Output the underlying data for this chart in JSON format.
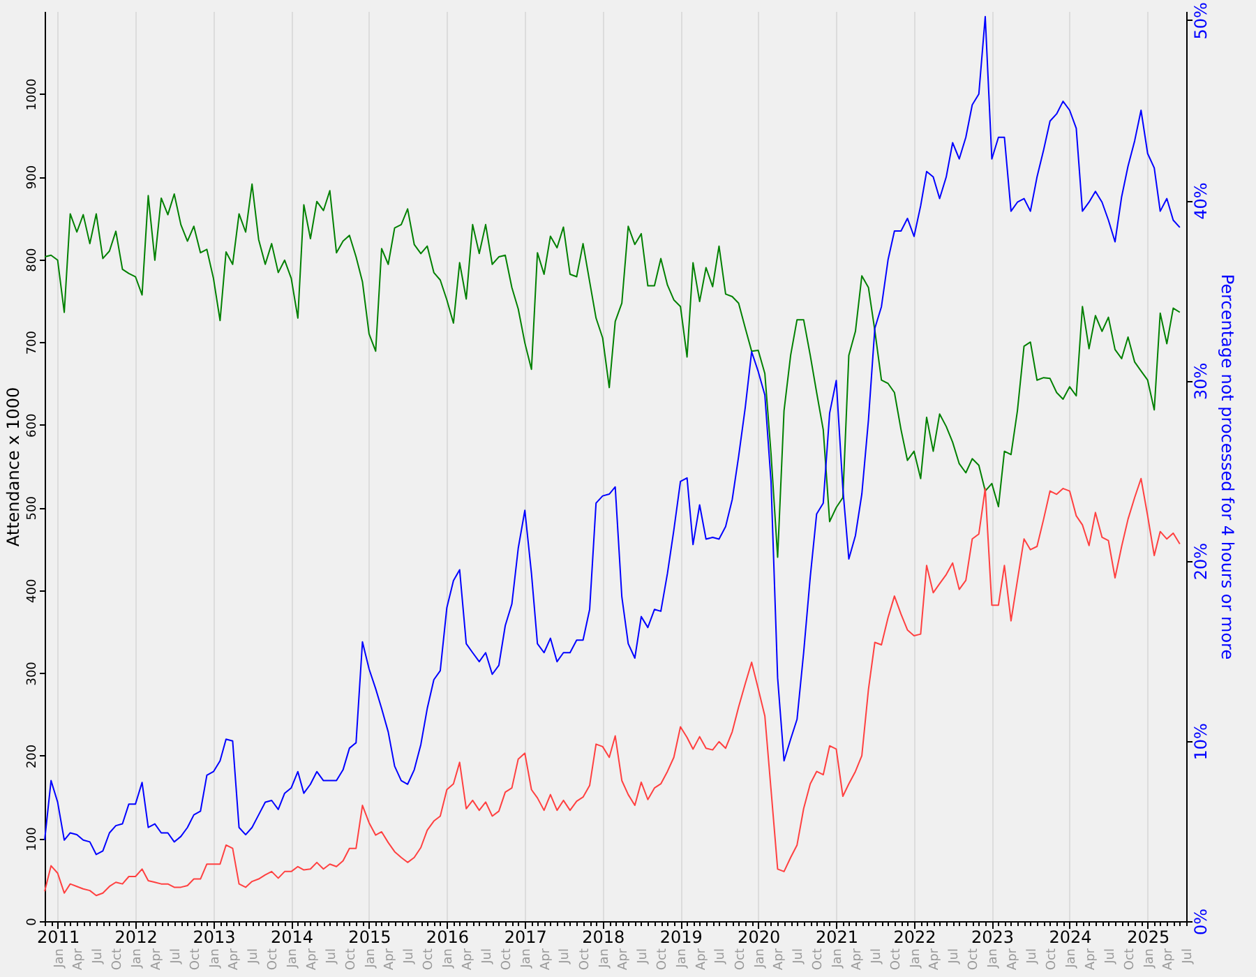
{
  "chart_data": {
    "type": "line",
    "xlabel": null,
    "ylabel": "Attendance x 1000",
    "y2label": "Percentage not processed for 4 hours or more",
    "grid": "x",
    "xlim": [
      "2010-11",
      "2025-07"
    ],
    "ylim": [
      0,
      1100
    ],
    "yticks": [
      0,
      100,
      200,
      300,
      400,
      500,
      600,
      700,
      800,
      900,
      1000
    ],
    "y2lim": [
      0,
      50.5
    ],
    "y2ticks": [
      {
        "value": 0,
        "label": "0%"
      },
      {
        "value": 10,
        "label": "10%"
      },
      {
        "value": 20,
        "label": "20%"
      },
      {
        "value": 30,
        "label": "30%"
      },
      {
        "value": 40,
        "label": "40%"
      },
      {
        "value": 50,
        "label": "50%"
      }
    ],
    "xticks": [
      {
        "value": "2011",
        "label": "2011"
      },
      {
        "value": "2012",
        "label": "2012"
      },
      {
        "value": "2013",
        "label": "2013"
      },
      {
        "value": "2014",
        "label": "2014"
      },
      {
        "value": "2015",
        "label": "2015"
      },
      {
        "value": "2016",
        "label": "2016"
      },
      {
        "value": "2017",
        "label": "2017"
      },
      {
        "value": "2018",
        "label": "2018"
      },
      {
        "value": "2019",
        "label": "2019"
      },
      {
        "value": "2020",
        "label": "2020"
      },
      {
        "value": "2021",
        "label": "2021"
      },
      {
        "value": "2022",
        "label": "2022"
      },
      {
        "value": "2023",
        "label": "2023"
      },
      {
        "value": "2024",
        "label": "2024"
      },
      {
        "value": "2025",
        "label": "2025"
      }
    ],
    "x2lim": [
      "2010-11",
      "2025-07"
    ],
    "x2ticks": [
      {
        "value": "2010-11",
        "label": null
      },
      {
        "value": "2010-12",
        "label": null
      },
      {
        "value": "2011-01",
        "label": "Jan"
      },
      {
        "value": "2011-02",
        "label": null
      },
      {
        "value": "2011-03",
        "label": null
      },
      {
        "value": "2011-04",
        "label": "Apr"
      },
      {
        "value": "2011-05",
        "label": null
      },
      {
        "value": "2011-06",
        "label": null
      },
      {
        "value": "2011-07",
        "label": "Jul"
      },
      {
        "value": "2011-08",
        "label": null
      },
      {
        "value": "2011-09",
        "label": null
      },
      {
        "value": "2011-10",
        "label": "Oct"
      },
      {
        "value": "2011-11",
        "label": null
      },
      {
        "value": "2011-12",
        "label": null
      },
      {
        "value": "2012-01",
        "label": "Jan"
      },
      {
        "value": "2012-02",
        "label": null
      },
      {
        "value": "2012-03",
        "label": null
      },
      {
        "value": "2012-04",
        "label": "Apr"
      },
      {
        "value": "2012-05",
        "label": null
      },
      {
        "value": "2012-06",
        "label": null
      },
      {
        "value": "2012-07",
        "label": "Jul"
      },
      {
        "value": "2012-08",
        "label": null
      },
      {
        "value": "2012-09",
        "label": null
      },
      {
        "value": "2012-10",
        "label": "Oct"
      },
      {
        "value": "2012-11",
        "label": null
      },
      {
        "value": "2012-12",
        "label": null
      },
      {
        "value": "2013-01",
        "label": "Jan"
      },
      {
        "value": "2013-02",
        "label": null
      },
      {
        "value": "2013-03",
        "label": null
      },
      {
        "value": "2013-04",
        "label": "Apr"
      },
      {
        "value": "2013-05",
        "label": null
      },
      {
        "value": "2013-06",
        "label": null
      },
      {
        "value": "2013-07",
        "label": "Jul"
      },
      {
        "value": "2013-08",
        "label": null
      },
      {
        "value": "2013-09",
        "label": null
      },
      {
        "value": "2013-10",
        "label": "Oct"
      },
      {
        "value": "2013-11",
        "label": null
      },
      {
        "value": "2013-12",
        "label": null
      },
      {
        "value": "2014-01",
        "label": "Jan"
      },
      {
        "value": "2014-02",
        "label": null
      },
      {
        "value": "2014-03",
        "label": null
      },
      {
        "value": "2014-04",
        "label": "Apr"
      },
      {
        "value": "2014-05",
        "label": null
      },
      {
        "value": "2014-06",
        "label": null
      },
      {
        "value": "2014-07",
        "label": "Jul"
      },
      {
        "value": "2014-08",
        "label": null
      },
      {
        "value": "2014-09",
        "label": null
      },
      {
        "value": "2014-10",
        "label": "Oct"
      },
      {
        "value": "2014-11",
        "label": null
      },
      {
        "value": "2014-12",
        "label": null
      },
      {
        "value": "2015-01",
        "label": "Jan"
      },
      {
        "value": "2015-02",
        "label": null
      },
      {
        "value": "2015-03",
        "label": null
      },
      {
        "value": "2015-04",
        "label": "Apr"
      },
      {
        "value": "2015-05",
        "label": null
      },
      {
        "value": "2015-06",
        "label": null
      },
      {
        "value": "2015-07",
        "label": "Jul"
      },
      {
        "value": "2015-08",
        "label": null
      },
      {
        "value": "2015-09",
        "label": null
      },
      {
        "value": "2015-10",
        "label": "Oct"
      },
      {
        "value": "2015-11",
        "label": null
      },
      {
        "value": "2015-12",
        "label": null
      },
      {
        "value": "2016-01",
        "label": "Jan"
      },
      {
        "value": "2016-02",
        "label": null
      },
      {
        "value": "2016-03",
        "label": null
      },
      {
        "value": "2016-04",
        "label": "Apr"
      },
      {
        "value": "2016-05",
        "label": null
      },
      {
        "value": "2016-06",
        "label": null
      },
      {
        "value": "2016-07",
        "label": "Jul"
      },
      {
        "value": "2016-08",
        "label": null
      },
      {
        "value": "2016-09",
        "label": null
      },
      {
        "value": "2016-10",
        "label": "Oct"
      },
      {
        "value": "2016-11",
        "label": null
      },
      {
        "value": "2016-12",
        "label": null
      },
      {
        "value": "2017-01",
        "label": "Jan"
      },
      {
        "value": "2017-02",
        "label": null
      },
      {
        "value": "2017-03",
        "label": null
      },
      {
        "value": "2017-04",
        "label": "Apr"
      },
      {
        "value": "2017-05",
        "label": null
      },
      {
        "value": "2017-06",
        "label": null
      },
      {
        "value": "2017-07",
        "label": "Jul"
      },
      {
        "value": "2017-08",
        "label": null
      },
      {
        "value": "2017-09",
        "label": null
      },
      {
        "value": "2017-10",
        "label": "Oct"
      },
      {
        "value": "2017-11",
        "label": null
      },
      {
        "value": "2017-12",
        "label": null
      },
      {
        "value": "2018-01",
        "label": "Jan"
      },
      {
        "value": "2018-02",
        "label": null
      },
      {
        "value": "2018-03",
        "label": null
      },
      {
        "value": "2018-04",
        "label": "Apr"
      },
      {
        "value": "2018-05",
        "label": null
      },
      {
        "value": "2018-06",
        "label": null
      },
      {
        "value": "2018-07",
        "label": "Jul"
      },
      {
        "value": "2018-08",
        "label": null
      },
      {
        "value": "2018-09",
        "label": null
      },
      {
        "value": "2018-10",
        "label": "Oct"
      },
      {
        "value": "2018-11",
        "label": null
      },
      {
        "value": "2018-12",
        "label": null
      },
      {
        "value": "2019-01",
        "label": "Jan"
      },
      {
        "value": "2019-02",
        "label": null
      },
      {
        "value": "2019-03",
        "label": null
      },
      {
        "value": "2019-04",
        "label": "Apr"
      },
      {
        "value": "2019-05",
        "label": null
      },
      {
        "value": "2019-06",
        "label": null
      },
      {
        "value": "2019-07",
        "label": "Jul"
      },
      {
        "value": "2019-08",
        "label": null
      },
      {
        "value": "2019-09",
        "label": null
      },
      {
        "value": "2019-10",
        "label": "Oct"
      },
      {
        "value": "2019-11",
        "label": null
      },
      {
        "value": "2019-12",
        "label": null
      },
      {
        "value": "2020-01",
        "label": "Jan"
      },
      {
        "value": "2020-02",
        "label": null
      },
      {
        "value": "2020-03",
        "label": null
      },
      {
        "value": "2020-04",
        "label": "Apr"
      },
      {
        "value": "2020-05",
        "label": null
      },
      {
        "value": "2020-06",
        "label": null
      },
      {
        "value": "2020-07",
        "label": "Jul"
      },
      {
        "value": "2020-08",
        "label": null
      },
      {
        "value": "2020-09",
        "label": null
      },
      {
        "value": "2020-10",
        "label": "Oct"
      },
      {
        "value": "2020-11",
        "label": null
      },
      {
        "value": "2020-12",
        "label": null
      },
      {
        "value": "2021-01",
        "label": "Jan"
      },
      {
        "value": "2021-02",
        "label": null
      },
      {
        "value": "2021-03",
        "label": null
      },
      {
        "value": "2021-04",
        "label": "Apr"
      },
      {
        "value": "2021-05",
        "label": null
      },
      {
        "value": "2021-06",
        "label": null
      },
      {
        "value": "2021-07",
        "label": "Jul"
      },
      {
        "value": "2021-08",
        "label": null
      },
      {
        "value": "2021-09",
        "label": null
      },
      {
        "value": "2021-10",
        "label": "Oct"
      },
      {
        "value": "2021-11",
        "label": null
      },
      {
        "value": "2021-12",
        "label": null
      },
      {
        "value": "2022-01",
        "label": "Jan"
      },
      {
        "value": "2022-02",
        "label": null
      },
      {
        "value": "2022-03",
        "label": null
      },
      {
        "value": "2022-04",
        "label": "Apr"
      },
      {
        "value": "2022-05",
        "label": null
      },
      {
        "value": "2022-06",
        "label": null
      },
      {
        "value": "2022-07",
        "label": "Jul"
      },
      {
        "value": "2022-08",
        "label": null
      },
      {
        "value": "2022-09",
        "label": null
      },
      {
        "value": "2022-10",
        "label": "Oct"
      },
      {
        "value": "2022-11",
        "label": null
      },
      {
        "value": "2022-12",
        "label": null
      },
      {
        "value": "2023-01",
        "label": "Jan"
      },
      {
        "value": "2023-02",
        "label": null
      },
      {
        "value": "2023-03",
        "label": null
      },
      {
        "value": "2023-04",
        "label": "Apr"
      },
      {
        "value": "2023-05",
        "label": null
      },
      {
        "value": "2023-06",
        "label": null
      },
      {
        "value": "2023-07",
        "label": "Jul"
      },
      {
        "value": "2023-08",
        "label": null
      },
      {
        "value": "2023-09",
        "label": null
      },
      {
        "value": "2023-10",
        "label": "Oct"
      },
      {
        "value": "2023-11",
        "label": null
      },
      {
        "value": "2023-12",
        "label": null
      },
      {
        "value": "2024-01",
        "label": "Jan"
      },
      {
        "value": "2024-02",
        "label": null
      },
      {
        "value": "2024-03",
        "label": null
      },
      {
        "value": "2024-04",
        "label": "Apr"
      },
      {
        "value": "2024-05",
        "label": null
      },
      {
        "value": "2024-06",
        "label": null
      },
      {
        "value": "2024-07",
        "label": "Jul"
      },
      {
        "value": "2024-08",
        "label": null
      },
      {
        "value": "2024-09",
        "label": null
      },
      {
        "value": "2024-10",
        "label": "Oct"
      },
      {
        "value": "2024-11",
        "label": null
      },
      {
        "value": "2024-12",
        "label": null
      },
      {
        "value": "2025-01",
        "label": "Jan"
      },
      {
        "value": "2025-02",
        "label": null
      },
      {
        "value": "2025-03",
        "label": null
      },
      {
        "value": "2025-04",
        "label": "Apr"
      },
      {
        "value": "2025-05",
        "label": null
      },
      {
        "value": "2025-06",
        "label": null
      },
      {
        "value": "2025-07",
        "label": "Jul"
      }
    ],
    "x": [
      "2010-11",
      "2010-12",
      "2011-01",
      "2011-02",
      "2011-03",
      "2011-04",
      "2011-05",
      "2011-06",
      "2011-07",
      "2011-08",
      "2011-09",
      "2011-10",
      "2011-11",
      "2011-12",
      "2012-01",
      "2012-02",
      "2012-03",
      "2012-04",
      "2012-05",
      "2012-06",
      "2012-07",
      "2012-08",
      "2012-09",
      "2012-10",
      "2012-11",
      "2012-12",
      "2013-01",
      "2013-02",
      "2013-03",
      "2013-04",
      "2013-05",
      "2013-06",
      "2013-07",
      "2013-08",
      "2013-09",
      "2013-10",
      "2013-11",
      "2013-12",
      "2014-01",
      "2014-02",
      "2014-03",
      "2014-04",
      "2014-05",
      "2014-06",
      "2014-07",
      "2014-08",
      "2014-09",
      "2014-10",
      "2014-11",
      "2014-12",
      "2015-01",
      "2015-02",
      "2015-03",
      "2015-04",
      "2015-05",
      "2015-06",
      "2015-07",
      "2015-08",
      "2015-09",
      "2015-10",
      "2015-11",
      "2015-12",
      "2016-01",
      "2016-02",
      "2016-03",
      "2016-04",
      "2016-05",
      "2016-06",
      "2016-07",
      "2016-08",
      "2016-09",
      "2016-10",
      "2016-11",
      "2016-12",
      "2017-01",
      "2017-02",
      "2017-03",
      "2017-04",
      "2017-05",
      "2017-06",
      "2017-07",
      "2017-08",
      "2017-09",
      "2017-10",
      "2017-11",
      "2017-12",
      "2018-01",
      "2018-02",
      "2018-03",
      "2018-04",
      "2018-05",
      "2018-06",
      "2018-07",
      "2018-08",
      "2018-09",
      "2018-10",
      "2018-11",
      "2018-12",
      "2019-01",
      "2019-02",
      "2019-03",
      "2019-04",
      "2019-05",
      "2019-06",
      "2019-07",
      "2019-08",
      "2019-09",
      "2019-10",
      "2019-11",
      "2019-12",
      "2020-01",
      "2020-02",
      "2020-03",
      "2020-04",
      "2020-05",
      "2020-06",
      "2020-07",
      "2020-08",
      "2020-09",
      "2020-10",
      "2020-11",
      "2020-12",
      "2021-01",
      "2021-02",
      "2021-03",
      "2021-04",
      "2021-05",
      "2021-06",
      "2021-07",
      "2021-08",
      "2021-09",
      "2021-10",
      "2021-11",
      "2021-12",
      "2022-01",
      "2022-02",
      "2022-03",
      "2022-04",
      "2022-05",
      "2022-06",
      "2022-07",
      "2022-08",
      "2022-09",
      "2022-10",
      "2022-11",
      "2022-12",
      "2023-01",
      "2023-02",
      "2023-03",
      "2023-04",
      "2023-05",
      "2023-06",
      "2023-07",
      "2023-08",
      "2023-09",
      "2023-10",
      "2023-11",
      "2023-12",
      "2024-01",
      "2024-02",
      "2024-03",
      "2024-04",
      "2024-05",
      "2024-06",
      "2024-07",
      "2024-08",
      "2024-09",
      "2024-10",
      "2024-11",
      "2024-12",
      "2025-01",
      "2025-02",
      "2025-03",
      "2025-04",
      "2025-05",
      "2025-06"
    ],
    "series": [
      {
        "color": "#008000",
        "values": [
          803,
          805,
          799,
          736,
          855,
          833,
          854,
          819,
          855,
          801,
          810,
          834,
          788,
          783,
          779,
          757,
          877,
          799,
          874,
          854,
          879,
          842,
          822,
          840,
          808,
          812,
          777,
          726,
          809,
          794,
          855,
          833,
          891,
          824,
          794,
          819,
          784,
          799,
          777,
          729,
          866,
          825,
          870,
          859,
          883,
          808,
          822,
          829,
          803,
          773,
          710,
          689,
          813,
          794,
          838,
          842,
          861,
          818,
          807,
          816,
          784,
          775,
          751,
          723,
          796,
          752,
          842,
          807,
          842,
          794,
          803,
          805,
          766,
          740,
          699,
          667,
          808,
          782,
          828,
          814,
          839,
          782,
          779,
          819,
          773,
          729,
          705,
          645,
          725,
          747,
          840,
          818,
          831,
          768,
          768,
          801,
          769,
          751,
          743,
          682,
          796,
          749,
          790,
          767,
          816,
          758,
          755,
          747,
          717,
          689,
          690,
          662,
          565,
          440,
          617,
          684,
          727,
          727,
          684,
          639,
          594,
          483,
          500,
          512,
          684,
          713,
          780,
          766,
          714,
          654,
          650,
          639,
          594,
          557,
          568,
          535,
          609,
          568,
          613,
          598,
          579,
          553,
          542,
          559,
          551,
          520,
          529,
          501,
          568,
          564,
          617,
          695,
          700,
          654,
          657,
          656,
          639,
          631,
          646,
          635,
          743,
          692,
          732,
          713,
          730,
          691,
          680,
          706,
          676,
          665,
          654,
          618,
          735,
          698,
          741,
          736
        ]
      },
      {
        "color": "#ff4040",
        "values": [
          36,
          67,
          58,
          34,
          45,
          42,
          39,
          37,
          31,
          34,
          42,
          47,
          45,
          54,
          54,
          63,
          49,
          47,
          45,
          45,
          41,
          41,
          43,
          51,
          51,
          69,
          69,
          69,
          92,
          88,
          45,
          41,
          48,
          51,
          56,
          60,
          52,
          60,
          60,
          66,
          62,
          63,
          71,
          63,
          69,
          66,
          73,
          88,
          88,
          140,
          119,
          104,
          108,
          95,
          84,
          77,
          71,
          77,
          89,
          110,
          121,
          127,
          159,
          166,
          192,
          136,
          146,
          134,
          144,
          127,
          133,
          156,
          161,
          196,
          203,
          159,
          149,
          134,
          153,
          134,
          146,
          134,
          145,
          150,
          164,
          214,
          211,
          198,
          224,
          170,
          153,
          140,
          168,
          147,
          161,
          166,
          181,
          198,
          235,
          222,
          208,
          223,
          209,
          207,
          217,
          209,
          229,
          259,
          287,
          313,
          281,
          248,
          159,
          63,
          60,
          77,
          92,
          136,
          166,
          181,
          177,
          212,
          208,
          151,
          166,
          181,
          200,
          280,
          337,
          334,
          367,
          393,
          371,
          352,
          345,
          347,
          430,
          397,
          408,
          419,
          433,
          401,
          412,
          462,
          468,
          523,
          382,
          382,
          430,
          363,
          412,
          462,
          449,
          453,
          486,
          520,
          516,
          523,
          520,
          490,
          479,
          454,
          494,
          464,
          460,
          415,
          453,
          486,
          512,
          535,
          490,
          442,
          471,
          462,
          469,
          456
        ]
      },
      {
        "color": "#0000ff",
        "axis": "y2",
        "values": [
          4.5,
          7.8,
          6.6,
          4.5,
          4.9,
          4.8,
          4.5,
          4.4,
          3.7,
          3.9,
          4.9,
          5.3,
          5.4,
          6.5,
          6.5,
          7.7,
          5.2,
          5.4,
          4.9,
          4.9,
          4.4,
          4.7,
          5.2,
          5.9,
          6.1,
          8.1,
          8.3,
          8.9,
          10.1,
          10.0,
          5.2,
          4.8,
          5.2,
          5.9,
          6.6,
          6.7,
          6.2,
          7.1,
          7.4,
          8.3,
          7.1,
          7.6,
          8.3,
          7.8,
          7.8,
          7.8,
          8.4,
          9.6,
          9.9,
          15.5,
          14.0,
          12.9,
          11.8,
          10.5,
          8.6,
          7.8,
          7.6,
          8.4,
          9.8,
          11.8,
          13.4,
          13.9,
          17.4,
          18.9,
          19.5,
          15.4,
          14.9,
          14.4,
          14.9,
          13.7,
          14.2,
          16.4,
          17.6,
          20.7,
          22.8,
          19.3,
          15.4,
          14.9,
          15.7,
          14.4,
          14.9,
          14.9,
          15.6,
          15.6,
          17.3,
          23.2,
          23.6,
          23.7,
          24.1,
          18.0,
          15.4,
          14.6,
          16.9,
          16.3,
          17.3,
          17.2,
          19.3,
          21.7,
          24.4,
          24.6,
          20.9,
          23.1,
          21.2,
          21.3,
          21.2,
          21.9,
          23.4,
          25.8,
          28.5,
          31.6,
          30.5,
          29.2,
          24.4,
          13.5,
          8.9,
          10.1,
          11.2,
          14.9,
          19.1,
          22.6,
          23.2,
          28.2,
          30.0,
          24.0,
          20.1,
          21.4,
          23.7,
          27.8,
          32.9,
          34.1,
          36.7,
          38.3,
          38.3,
          39.0,
          38.0,
          39.7,
          41.6,
          41.3,
          40.1,
          41.3,
          43.2,
          42.3,
          43.5,
          45.3,
          45.9,
          50.2,
          42.3,
          43.5,
          43.5,
          39.4,
          39.9,
          40.1,
          39.4,
          41.3,
          42.8,
          44.4,
          44.8,
          45.5,
          45.0,
          44.0,
          39.4,
          39.9,
          40.5,
          39.9,
          38.9,
          37.7,
          40.2,
          41.9,
          43.3,
          45.0,
          42.6,
          41.8,
          39.4,
          40.1,
          38.9,
          38.5
        ]
      }
    ]
  }
}
